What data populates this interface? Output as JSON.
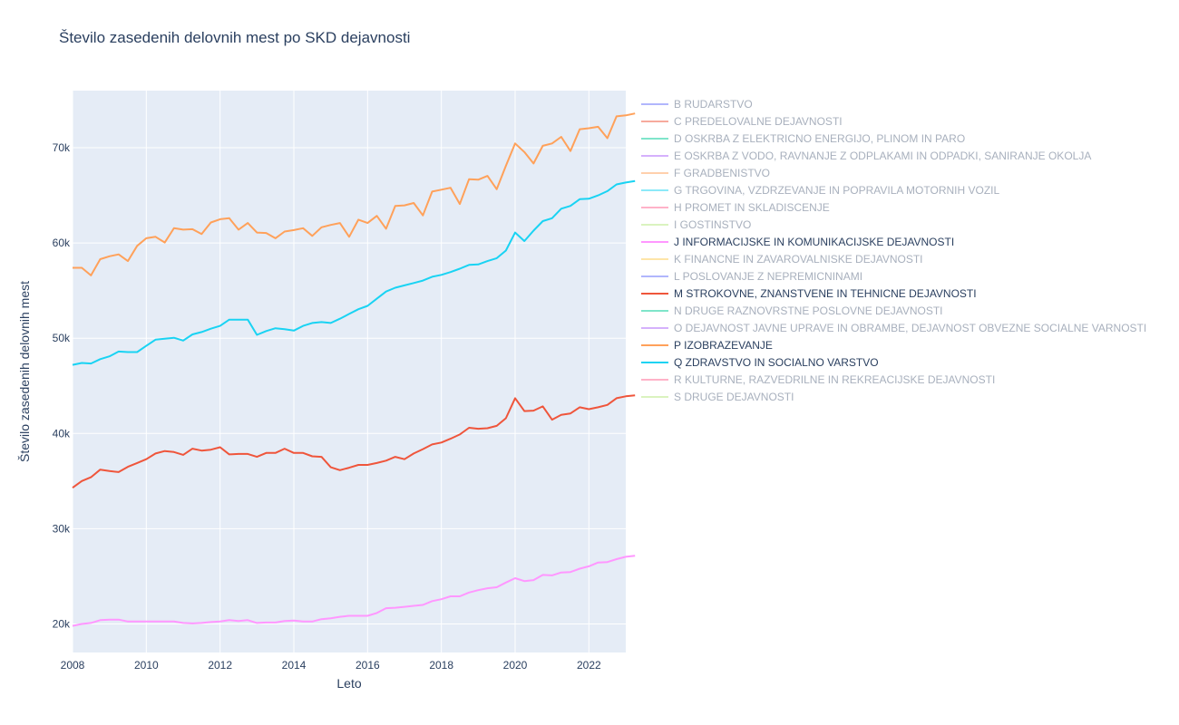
{
  "chart_data": {
    "type": "line",
    "title": "Število zasedenih delovnih mest po SKD dejavnosti",
    "xlabel": "Leto",
    "ylabel": "Število zasedenih delovnih mest",
    "xlim": [
      2008,
      2023
    ],
    "ylim": [
      17000,
      76000
    ],
    "x_ticks": [
      "2008",
      "2010",
      "2012",
      "2014",
      "2016",
      "2018",
      "2020",
      "2022"
    ],
    "y_ticks": [
      "20k",
      "30k",
      "40k",
      "50k",
      "60k",
      "70k"
    ],
    "x_tick_values": [
      2008,
      2010,
      2012,
      2014,
      2016,
      2018,
      2020,
      2022
    ],
    "y_tick_values": [
      20000,
      30000,
      40000,
      50000,
      60000,
      70000
    ],
    "x_start": 2008,
    "x_step": 0.25,
    "legend_position": "right",
    "series": [
      {
        "name": "B RUDARSTVO",
        "color": "#636efa",
        "visible": false,
        "values": []
      },
      {
        "name": "C PREDELOVALNE DEJAVNOSTI",
        "color": "#ef553b",
        "visible": false,
        "values": []
      },
      {
        "name": "D OSKRBA Z ELEKTRICNO ENERGIJO, PLINOM IN PARO",
        "color": "#00cc96",
        "visible": false,
        "values": []
      },
      {
        "name": "E OSKRBA Z VODO, RAVNANJE Z ODPLAKAMI IN ODPADKI, SANIRANJE OKOLJA",
        "color": "#ab63fa",
        "visible": false,
        "values": []
      },
      {
        "name": "F GRADBENISTVO",
        "color": "#ffa15a",
        "visible": false,
        "values": []
      },
      {
        "name": "G TRGOVINA, VZDRZEVANJE IN POPRAVILA MOTORNIH VOZIL",
        "color": "#19d3f3",
        "visible": false,
        "values": []
      },
      {
        "name": "H PROMET IN SKLADISCENJE",
        "color": "#ff6692",
        "visible": false,
        "values": []
      },
      {
        "name": "I GOSTINSTVO",
        "color": "#b6e880",
        "visible": false,
        "values": []
      },
      {
        "name": "J INFORMACIJSKE IN KOMUNIKACIJSKE DEJAVNOSTI",
        "color": "#ff97ff",
        "visible": true,
        "values": [
          19800,
          20000,
          20100,
          20400,
          20450,
          20450,
          20250,
          20250,
          20250,
          20250,
          20250,
          20250,
          20100,
          20050,
          20100,
          20200,
          20250,
          20400,
          20300,
          20400,
          20100,
          20150,
          20150,
          20300,
          20350,
          20250,
          20250,
          20500,
          20600,
          20750,
          20850,
          20850,
          20850,
          21150,
          21650,
          21700,
          21800,
          21900,
          22000,
          22400,
          22600,
          22900,
          22900,
          23300,
          23550,
          23750,
          23850,
          24350,
          24800,
          24500,
          24600,
          25150,
          25100,
          25400,
          25450,
          25800,
          26050,
          26450,
          26500,
          26800,
          27050,
          27150
        ]
      },
      {
        "name": "K FINANCNE IN ZAVAROVALNISKE DEJAVNOSTI",
        "color": "#fecb52",
        "visible": false,
        "values": []
      },
      {
        "name": "L POSLOVANJE Z NEPREMICNINAMI",
        "color": "#636efa",
        "visible": false,
        "values": []
      },
      {
        "name": "M STROKOVNE, ZNANSTVENE IN TEHNICNE DEJAVNOSTI",
        "color": "#ef553b",
        "visible": true,
        "values": [
          34300,
          35000,
          35400,
          36200,
          36050,
          35950,
          36500,
          36900,
          37300,
          37900,
          38150,
          38050,
          37750,
          38400,
          38200,
          38300,
          38550,
          37800,
          37850,
          37850,
          37550,
          37950,
          37950,
          38400,
          37950,
          37950,
          37600,
          37550,
          36450,
          36150,
          36400,
          36700,
          36700,
          36900,
          37150,
          37550,
          37300,
          37900,
          38350,
          38850,
          39050,
          39450,
          39900,
          40600,
          40500,
          40550,
          40800,
          41600,
          43700,
          42350,
          42400,
          42850,
          41450,
          41950,
          42100,
          42750,
          42550,
          42750,
          43000,
          43700,
          43900,
          44000
        ]
      },
      {
        "name": "N DRUGE RAZNOVRSTNE POSLOVNE DEJAVNOSTI",
        "color": "#00cc96",
        "visible": false,
        "values": []
      },
      {
        "name": "O DEJAVNOST JAVNE UPRAVE IN OBRAMBE, DEJAVNOST OBVEZNE SOCIALNE VARNOSTI",
        "color": "#ab63fa",
        "visible": false,
        "values": []
      },
      {
        "name": "P IZOBRAZEVANJE",
        "color": "#ffa15a",
        "visible": true,
        "values": [
          57400,
          57400,
          56600,
          58300,
          58600,
          58800,
          58100,
          59700,
          60500,
          60650,
          60050,
          61550,
          61400,
          61450,
          60950,
          62150,
          62500,
          62600,
          61400,
          62100,
          61100,
          61050,
          60500,
          61200,
          61350,
          61550,
          60750,
          61650,
          61900,
          62100,
          60650,
          62450,
          62100,
          62850,
          61500,
          63900,
          63950,
          64200,
          62900,
          65400,
          65600,
          65800,
          64100,
          66700,
          66650,
          67050,
          65650,
          68100,
          70450,
          69550,
          68350,
          70200,
          70450,
          71150,
          69650,
          71950,
          72050,
          72200,
          71000,
          73300,
          73400,
          73600
        ]
      },
      {
        "name": "Q ZDRAVSTVO IN SOCIALNO VARSTVO",
        "color": "#19d3f3",
        "visible": true,
        "values": [
          47200,
          47400,
          47350,
          47800,
          48100,
          48600,
          48550,
          48550,
          49200,
          49850,
          49950,
          50050,
          49750,
          50400,
          50650,
          51000,
          51300,
          51950,
          51950,
          51950,
          50350,
          50750,
          51050,
          50950,
          50800,
          51300,
          51600,
          51700,
          51600,
          52050,
          52550,
          53050,
          53400,
          54150,
          54900,
          55300,
          55550,
          55800,
          56050,
          56450,
          56650,
          56950,
          57300,
          57700,
          57750,
          58100,
          58400,
          59200,
          61100,
          60200,
          61300,
          62300,
          62600,
          63600,
          63900,
          64600,
          64650,
          65000,
          65450,
          66150,
          66350,
          66500
        ]
      },
      {
        "name": "R KULTURNE, RAZVEDRILNE IN REKREACIJSKE DEJAVNOSTI",
        "color": "#ff6692",
        "visible": false,
        "values": []
      },
      {
        "name": "S DRUGE DEJAVNOSTI",
        "color": "#b6e880",
        "visible": false,
        "values": []
      }
    ]
  }
}
